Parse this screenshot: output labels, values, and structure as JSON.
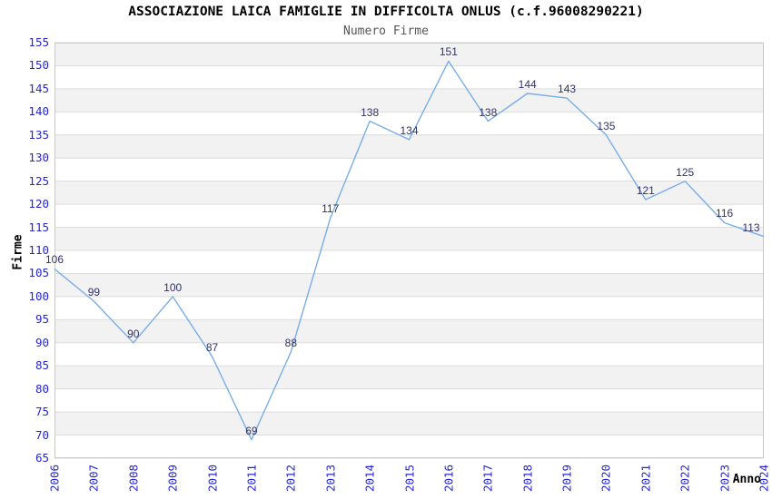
{
  "chart_data": {
    "type": "line",
    "title": "ASSOCIAZIONE LAICA FAMIGLIE IN DIFFICOLTA ONLUS (c.f.96008290221)",
    "subtitle": "Numero Firme",
    "xlabel": "Anno",
    "ylabel": "Firme",
    "categories": [
      "2006",
      "2007",
      "2008",
      "2009",
      "2010",
      "2011",
      "2012",
      "2013",
      "2014",
      "2015",
      "2016",
      "2017",
      "2018",
      "2019",
      "2020",
      "2021",
      "2022",
      "2023",
      "2024"
    ],
    "series": [
      {
        "name": "Numero Firme",
        "values": [
          106,
          99,
          90,
          100,
          87,
          69,
          88,
          117,
          138,
          134,
          151,
          138,
          144,
          143,
          135,
          121,
          125,
          116,
          113
        ]
      }
    ],
    "ylim": [
      65,
      155
    ],
    "ytick_step": 5,
    "grid": true,
    "band_fill": "alternating-horizontal",
    "legend_position": "none",
    "colors": {
      "line": "#79ade6",
      "point_label": "#333366",
      "tick_label": "#2626cc",
      "band_gray": "#f2f2f2",
      "band_white": "#ffffff",
      "grid_line": "#dcdcdc",
      "plot_border": "#c8c8c8",
      "title": "#000000",
      "subtitle": "#555555",
      "axis_title": "#000000"
    }
  }
}
